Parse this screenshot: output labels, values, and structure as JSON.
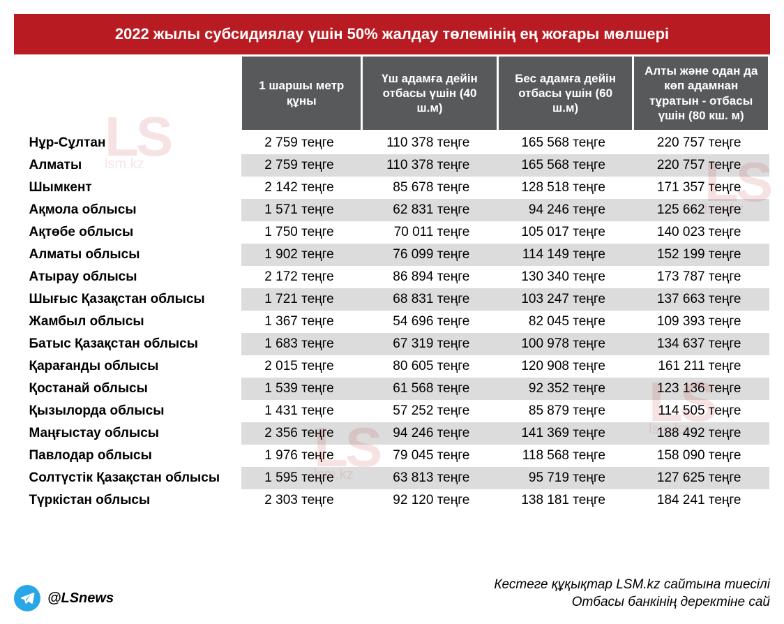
{
  "header": {
    "title": "2022 жылы субсидиялау үшін 50% жалдау төлемінің ең жоғары мөлшері",
    "bg_color": "#b81c22",
    "text_color": "#ffffff"
  },
  "table": {
    "header_bg": "#58595b",
    "header_text": "#ffffff",
    "row_even_bg": "#dcdcdc",
    "row_odd_bg": "#ffffff",
    "columns": [
      "",
      "1 шаршы метр құны",
      "Үш адамға дейін отбасы үшін (40 ш.м)",
      "Бес  адамға дейін отбасы үшін (60 ш.м)",
      "Алты және одан да көп адамнан тұратын - отбасы үшін (80 кш. м)"
    ],
    "currency_suffix": " теңге",
    "rows": [
      {
        "region": "Нұр-Сұлтан",
        "v": [
          "2 759",
          "110 378",
          "165 568",
          "220 757"
        ]
      },
      {
        "region": "Алматы",
        "v": [
          "2 759",
          "110 378",
          "165 568",
          "220 757"
        ]
      },
      {
        "region": "Шымкент",
        "v": [
          "2 142",
          "85 678",
          "128 518",
          "171 357"
        ]
      },
      {
        "region": "Ақмола облысы",
        "v": [
          "1 571",
          "62 831",
          "94 246",
          "125 662"
        ]
      },
      {
        "region": "Ақтөбе облысы",
        "v": [
          "1 750",
          "70 011",
          "105 017",
          "140 023"
        ]
      },
      {
        "region": "Алматы облысы",
        "v": [
          "1 902",
          "76 099",
          "114 149",
          "152 199"
        ]
      },
      {
        "region": "Атырау облысы",
        "v": [
          "2 172",
          "86 894",
          "130 340",
          "173 787"
        ]
      },
      {
        "region": "Шығыс Қазақстан облысы",
        "v": [
          "1 721",
          "68 831",
          "103 247",
          "137 663"
        ]
      },
      {
        "region": "Жамбыл облысы",
        "v": [
          "1 367",
          "54 696",
          "82 045",
          "109 393"
        ]
      },
      {
        "region": "Батыс Қазақстан облысы",
        "v": [
          "1 683",
          "67 319",
          "100 978",
          "134 637"
        ]
      },
      {
        "region": "Қарағанды облысы",
        "v": [
          "2 015",
          "80 605",
          "120 908",
          "161 211"
        ]
      },
      {
        "region": "Қостанай облысы",
        "v": [
          "1 539",
          "61 568",
          "92 352",
          "123 136"
        ]
      },
      {
        "region": "Қызылорда облысы",
        "v": [
          "1 431",
          "57 252",
          "85 879",
          "114 505"
        ]
      },
      {
        "region": "Маңғыстау облысы",
        "v": [
          "2 356",
          "94 246",
          "141 369",
          "188 492"
        ]
      },
      {
        "region": "Павлодар облысы",
        "v": [
          "1 976",
          "79 045",
          "118 568",
          "158 090"
        ]
      },
      {
        "region": "Солтүстік Қазақстан облысы",
        "v": [
          "1 595",
          "63 813",
          "95 719",
          "127 625"
        ]
      },
      {
        "region": "Түркістан облысы",
        "v": [
          "2 303",
          "92 120",
          "138 181",
          "184 241"
        ]
      }
    ]
  },
  "footer": {
    "telegram_handle": "@LSnews",
    "telegram_icon_bg": "#27a7e7",
    "credit_line1": "Кестеге құқықтар LSM.kz сайтына тиесілі",
    "credit_line2": "Отбасы банкінің деректіне сай"
  },
  "watermark": {
    "text": "LS",
    "subtext": "lsm.kz",
    "color": "#b81c22",
    "opacity": 0.12
  }
}
